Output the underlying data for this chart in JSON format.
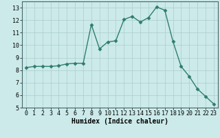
{
  "xlabel": "Humidex (Indice chaleur)",
  "x": [
    0,
    1,
    2,
    3,
    4,
    5,
    6,
    7,
    8,
    9,
    10,
    11,
    12,
    13,
    14,
    15,
    16,
    17,
    18,
    19,
    20,
    21,
    22,
    23
  ],
  "y": [
    8.2,
    8.3,
    8.3,
    8.3,
    8.35,
    8.5,
    8.55,
    8.55,
    11.65,
    9.7,
    10.25,
    10.35,
    12.05,
    12.3,
    11.85,
    12.2,
    13.05,
    12.8,
    10.3,
    8.3,
    7.5,
    6.5,
    5.9,
    5.3
  ],
  "line_color": "#2e7d6e",
  "marker": "D",
  "marker_size": 2.5,
  "bg_color": "#cceaea",
  "grid_color": "#aacccc",
  "ylim": [
    5,
    13.5
  ],
  "yticks": [
    5,
    6,
    7,
    8,
    9,
    10,
    11,
    12,
    13
  ],
  "xlim": [
    -0.5,
    23.5
  ],
  "xticks": [
    0,
    1,
    2,
    3,
    4,
    5,
    6,
    7,
    8,
    9,
    10,
    11,
    12,
    13,
    14,
    15,
    16,
    17,
    18,
    19,
    20,
    21,
    22,
    23
  ],
  "tick_fontsize": 6,
  "xlabel_fontsize": 7,
  "linewidth": 1.0
}
